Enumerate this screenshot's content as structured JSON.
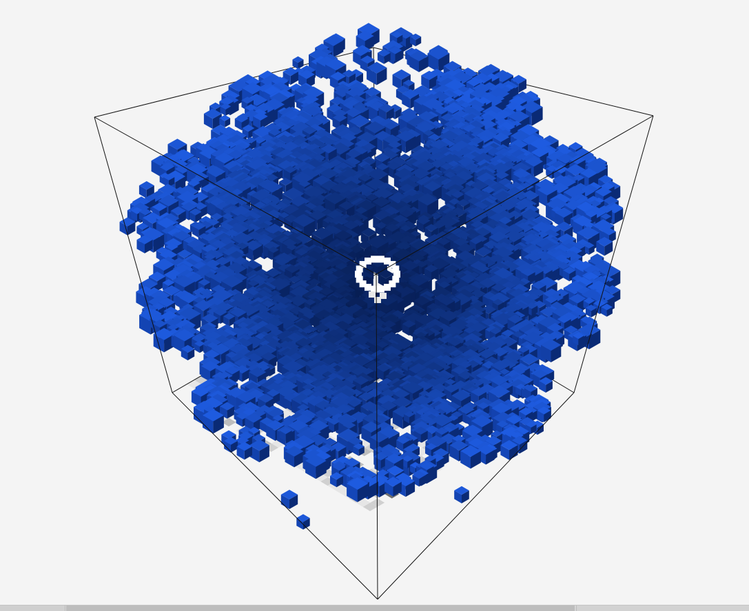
{
  "scene": {
    "kind": "3d-voxel-fractal",
    "description_hidden": "",
    "colors": {
      "background": "#f4f4f4",
      "cube_edges": "#111111",
      "voxel_light": "#1e5be0",
      "voxel_mid": "#1446b8",
      "voxel_dark": "#0a2a75",
      "voxel_deep": "#061a4a",
      "floor_light": "#e6e6e6",
      "floor_mid": "#bdbdbd",
      "floor_dark": "#6f6f6f",
      "core_ring": "#ffffff"
    }
  },
  "scrollbar": {
    "position_fraction": 0.09,
    "visible_fraction": 0.68
  }
}
